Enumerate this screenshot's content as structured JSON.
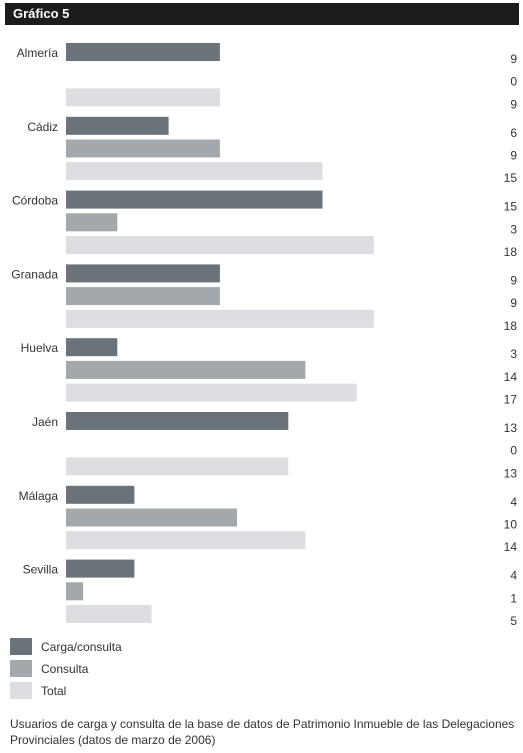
{
  "header": {
    "title": "Gráfico 5"
  },
  "chart_data": {
    "type": "bar",
    "orientation": "horizontal",
    "categories": [
      "Almería",
      "Cádiz",
      "Córdoba",
      "Granada",
      "Huelva",
      "Jaén",
      "Málaga",
      "Sevilla"
    ],
    "series": [
      {
        "name": "Carga/consulta",
        "color": "#6b737a",
        "values": [
          9,
          6,
          15,
          9,
          3,
          13,
          4,
          4
        ]
      },
      {
        "name": "Consulta",
        "color": "#a3a8ad",
        "values": [
          0,
          9,
          3,
          9,
          14,
          0,
          10,
          1
        ]
      },
      {
        "name": "Total",
        "color": "#dcdee1",
        "values": [
          9,
          15,
          18,
          18,
          17,
          13,
          14,
          5
        ]
      }
    ],
    "xlim": [
      0,
      18
    ],
    "data_labels": "right",
    "legend_position": "bottom-left",
    "title": "Gráfico 5",
    "xlabel": "",
    "ylabel": ""
  },
  "caption": "Usuarios de carga y consulta de la base de datos de Patrimonio Inmueble de las Delegaciones Provinciales (datos de marzo de 2006)"
}
